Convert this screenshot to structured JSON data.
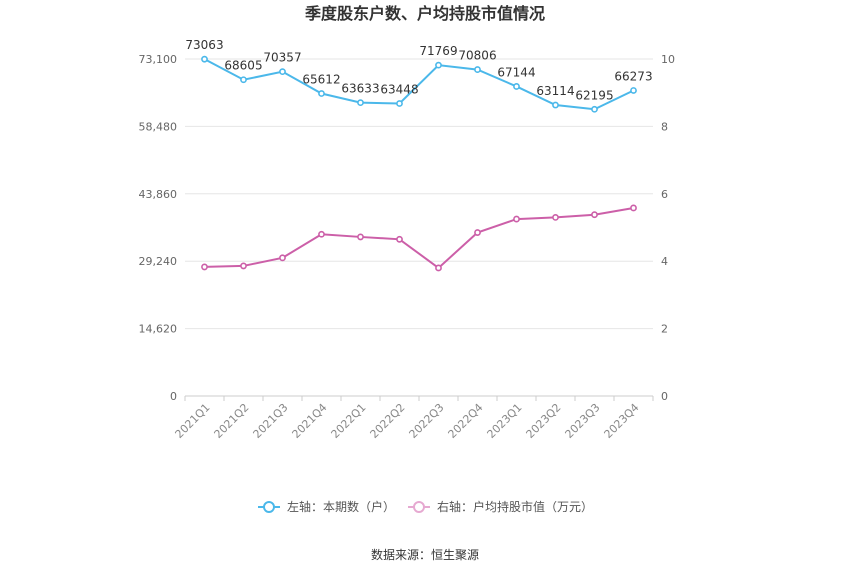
{
  "chart_data": {
    "type": "line",
    "title": "季度股东户数、户均持股市值情况",
    "categories": [
      "2021Q1",
      "2021Q2",
      "2021Q3",
      "2021Q4",
      "2022Q1",
      "2022Q2",
      "2022Q3",
      "2022Q4",
      "2023Q1",
      "2023Q2",
      "2023Q3",
      "2023Q4"
    ],
    "left_axis": {
      "ticks": [
        "0",
        "14,620",
        "29,240",
        "43,860",
        "58,480",
        "73,100"
      ],
      "min": 0,
      "max": 73100
    },
    "right_axis": {
      "ticks": [
        "0",
        "2",
        "4",
        "6",
        "8",
        "10"
      ],
      "min": 0,
      "max": 10
    },
    "series": [
      {
        "name": "左轴：本期数（户）",
        "axis": "left",
        "color": "#4bb8ea",
        "values": [
          73063,
          68605,
          70357,
          65612,
          63633,
          63448,
          71769,
          70806,
          67144,
          63114,
          62195,
          66273
        ],
        "labels": [
          "73063",
          "68605",
          "70357",
          "65612",
          "63633",
          "63448",
          "71769",
          "70806",
          "67144",
          "63114",
          "62195",
          "66273"
        ]
      },
      {
        "name": "右轴：户均持股市值（万元）",
        "axis": "right",
        "color": "#cc5fa8",
        "values": [
          3.83,
          3.86,
          4.1,
          4.8,
          4.72,
          4.65,
          3.8,
          4.85,
          5.25,
          5.3,
          5.38,
          5.58
        ]
      }
    ],
    "grid": true,
    "legend_position": "bottom"
  },
  "footer": {
    "source": "数据来源：恒生聚源"
  }
}
